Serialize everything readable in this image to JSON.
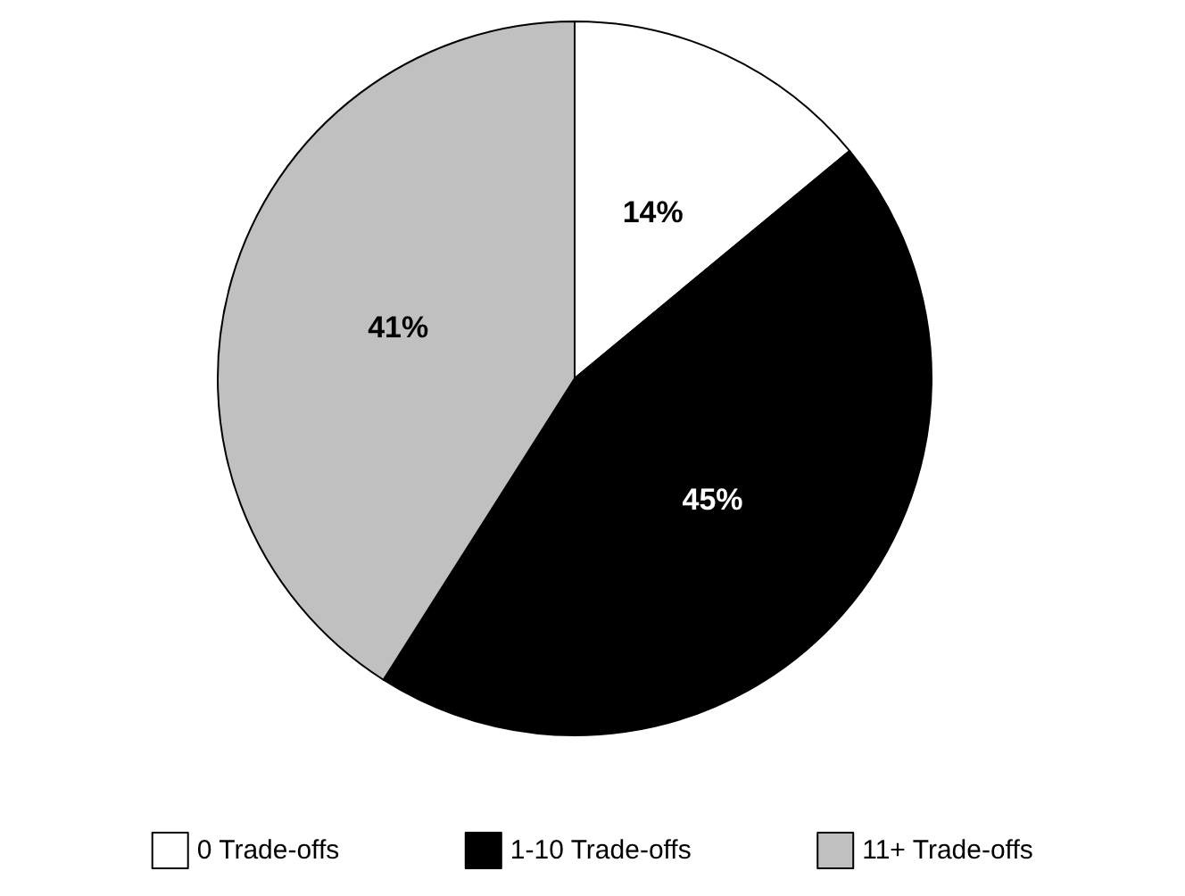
{
  "chart_data": {
    "type": "pie",
    "categories": [
      "0 Trade-offs",
      "1-10 Trade-offs",
      "11+ Trade-offs"
    ],
    "values": [
      14,
      45,
      41
    ],
    "colors": [
      "#ffffff",
      "#000000",
      "#c0c0c0"
    ],
    "value_labels": [
      "14%",
      "45%",
      "41%"
    ],
    "legend": "bottom"
  }
}
